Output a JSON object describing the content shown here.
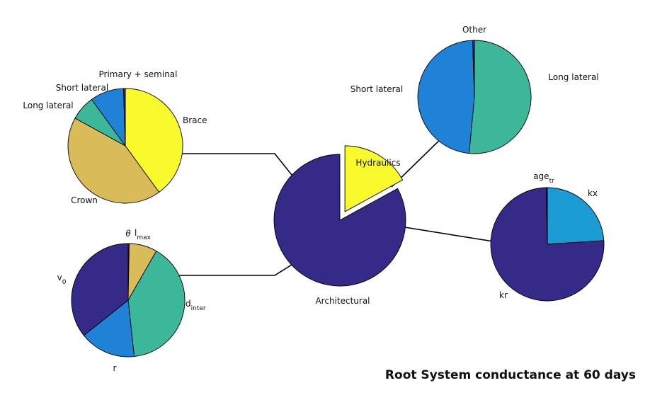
{
  "caption": "Root System conductance at 60 days",
  "colors": {
    "indigo": "#352a87",
    "yellow": "#f8fa2c",
    "teal": "#3db79a",
    "blue": "#1f82d6",
    "mustard": "#d9bb59",
    "lightblue": "#1a9bd4"
  },
  "chart_data": [
    {
      "id": "main",
      "type": "pie",
      "exploded": [
        "Hydraulics"
      ],
      "slices": [
        {
          "label": "Hydraulics",
          "value": 17,
          "color": "yellow"
        },
        {
          "label": "Architectural",
          "value": 83,
          "color": "indigo"
        }
      ]
    },
    {
      "id": "architectural-root-types",
      "type": "pie",
      "slices": [
        {
          "label": "Brace",
          "value": 40,
          "color": "yellow"
        },
        {
          "label": "Crown",
          "value": 43,
          "color": "mustard"
        },
        {
          "label": "Long lateral",
          "value": 7,
          "color": "teal"
        },
        {
          "label": "Short lateral",
          "value": 9.5,
          "color": "blue"
        },
        {
          "label": "Primary + seminal",
          "value": 0.5,
          "color": "indigo"
        }
      ]
    },
    {
      "id": "architectural-parameters",
      "type": "pie",
      "slices": [
        {
          "label": "θ",
          "value": 0.3,
          "color": "indigo"
        },
        {
          "label": "l",
          "sub": "max",
          "value": 8,
          "color": "mustard"
        },
        {
          "label": "d",
          "sub": "inter",
          "value": 40,
          "color": "teal"
        },
        {
          "label": "r",
          "value": 16,
          "color": "blue"
        },
        {
          "label": "v",
          "sub": "0",
          "value": 35.7,
          "color": "indigo"
        }
      ]
    },
    {
      "id": "hydraulics-root-types",
      "type": "pie",
      "slices": [
        {
          "label": "Long lateral",
          "value": 51.5,
          "color": "teal"
        },
        {
          "label": "Short lateral",
          "value": 48,
          "color": "blue"
        },
        {
          "label": "Other",
          "value": 0.5,
          "color": "indigo"
        }
      ]
    },
    {
      "id": "hydraulics-parameters",
      "type": "pie",
      "slices": [
        {
          "label": "kx",
          "value": 24,
          "color": "lightblue"
        },
        {
          "label": "kr",
          "value": 75.7,
          "color": "indigo"
        },
        {
          "label": "age",
          "sub": "tr",
          "value": 0.3,
          "color": "indigo"
        }
      ]
    }
  ]
}
